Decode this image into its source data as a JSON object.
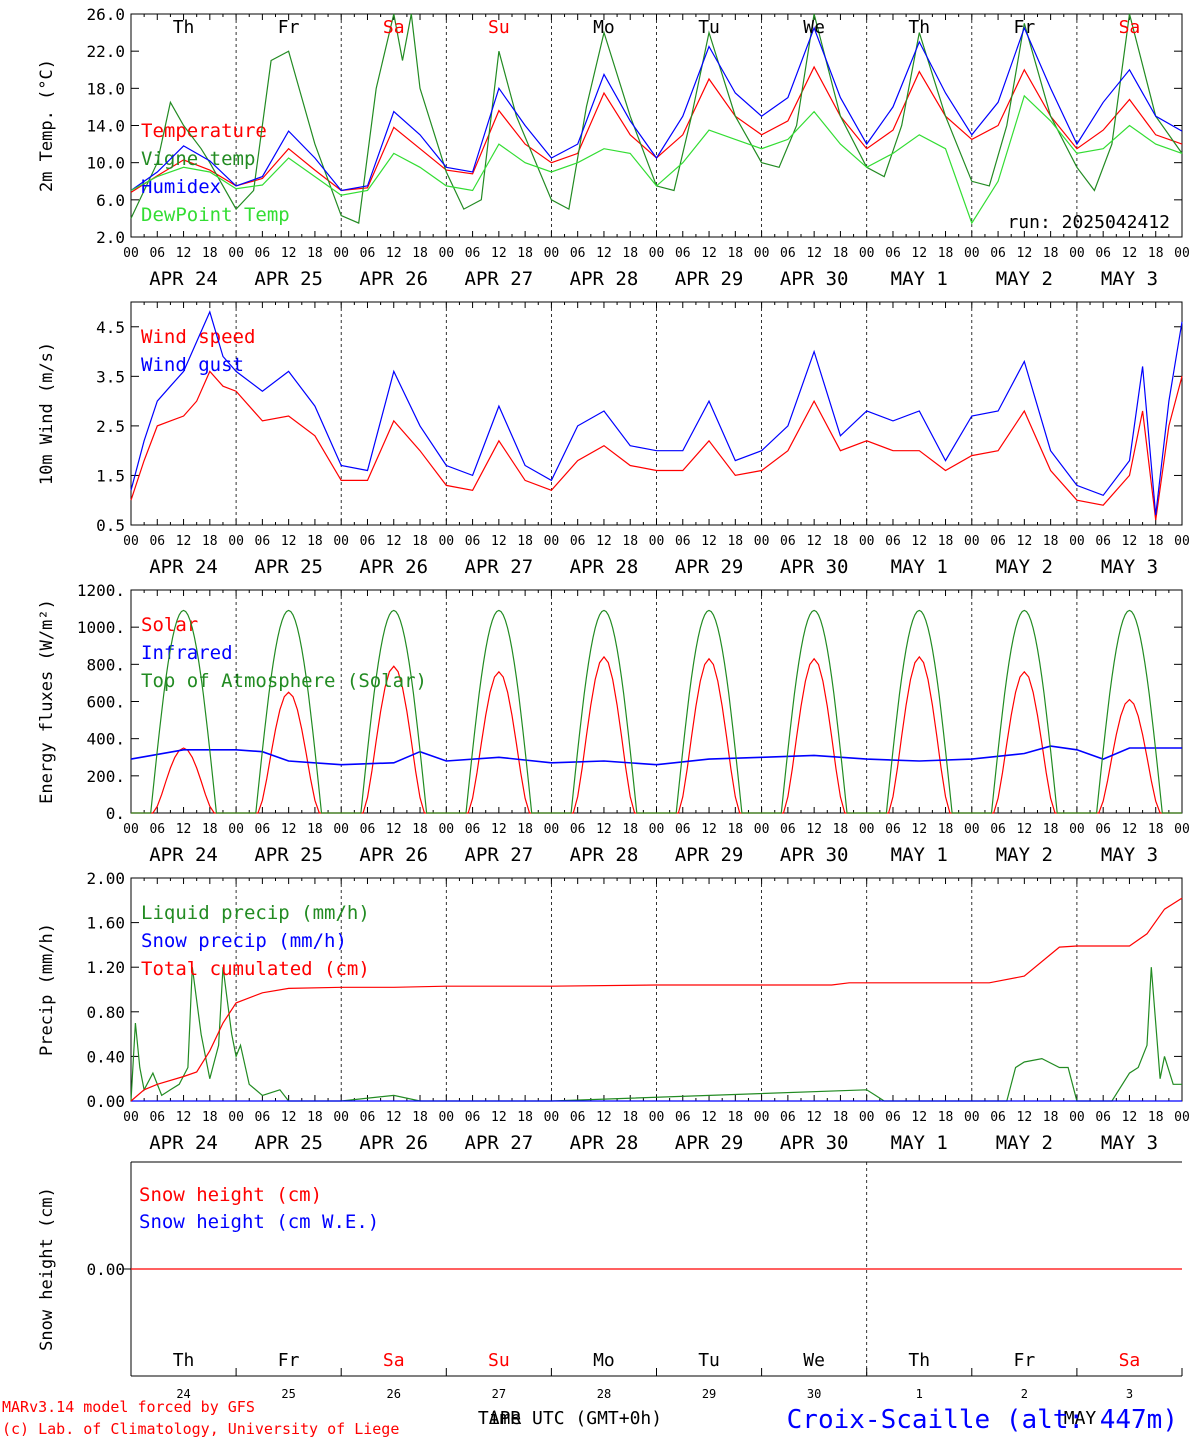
{
  "run_label": "run: 2025042412",
  "footer": {
    "credit_line1": "MARv3.14 model forced by GFS",
    "credit_line2": "(c) Lab. of Climatology, University of Liege",
    "time_axis_label": "Time UTC (GMT+0h)",
    "month_overlay_1": "APR",
    "month_overlay_2": "MAY",
    "station": "Croix-Scaille (alt: 447m)"
  },
  "colors": {
    "red": "#ff0000",
    "green": "#228b22",
    "blue": "#0000ff",
    "lightgreen": "#33dd33"
  },
  "days": [
    {
      "date": "APR 24",
      "dow": "Th",
      "weekend": false,
      "num": "24"
    },
    {
      "date": "APR 25",
      "dow": "Fr",
      "weekend": false,
      "num": "25"
    },
    {
      "date": "APR 26",
      "dow": "Sa",
      "weekend": true,
      "num": "26"
    },
    {
      "date": "APR 27",
      "dow": "Su",
      "weekend": true,
      "num": "27"
    },
    {
      "date": "APR 28",
      "dow": "Mo",
      "weekend": false,
      "num": "28"
    },
    {
      "date": "APR 29",
      "dow": "Tu",
      "weekend": false,
      "num": "29"
    },
    {
      "date": "APR 30",
      "dow": "We",
      "weekend": false,
      "num": "30"
    },
    {
      "date": "MAY  1",
      "dow": "Th",
      "weekend": false,
      "num": "1"
    },
    {
      "date": "MAY  2",
      "dow": "Fr",
      "weekend": false,
      "num": "2"
    },
    {
      "date": "MAY  3",
      "dow": "Sa",
      "weekend": true,
      "num": "3"
    }
  ],
  "hour_ticks": [
    "00",
    "06",
    "12",
    "18"
  ],
  "chart_data": [
    {
      "type": "line",
      "ylabel": "2m Temp. (°C)",
      "ylim": [
        2,
        26
      ],
      "yticks": [
        "2.0",
        "6.0",
        "10.0",
        "14.0",
        "18.0",
        "22.0",
        "26.0"
      ],
      "x_unit": "hours since APR 24 00 UTC",
      "series": [
        {
          "name": "Temperature",
          "color": "red",
          "x": [
            0,
            6,
            12,
            18,
            24,
            30,
            36,
            42,
            48,
            54,
            60,
            66,
            72,
            78,
            84,
            90,
            96,
            102,
            108,
            114,
            120,
            126,
            132,
            138,
            144,
            150,
            156,
            162,
            168,
            174,
            180,
            186,
            192,
            198,
            204,
            210,
            216,
            222,
            228,
            234,
            240
          ],
          "y": [
            6.8,
            8.6,
            10.3,
            9.2,
            7.5,
            8.3,
            11.5,
            9.2,
            7.0,
            7.3,
            13.8,
            11.5,
            9.2,
            8.8,
            15.6,
            12.0,
            10.0,
            11.0,
            17.5,
            13.0,
            10.5,
            13.0,
            19.0,
            15.0,
            13.0,
            14.5,
            20.3,
            15.0,
            11.5,
            13.5,
            19.8,
            15.0,
            12.5,
            14.0,
            20.0,
            15.0,
            11.5,
            13.5,
            16.8,
            13.0,
            12.0
          ]
        },
        {
          "name": "Vigne temp",
          "color": "green",
          "x": [
            0,
            6,
            9,
            12,
            16,
            18,
            24,
            28,
            32,
            36,
            42,
            48,
            52,
            56,
            60,
            62,
            64,
            66,
            72,
            76,
            80,
            84,
            88,
            96,
            100,
            104,
            108,
            114,
            120,
            124,
            128,
            132,
            138,
            144,
            148,
            152,
            156,
            162,
            168,
            172,
            176,
            180,
            186,
            192,
            196,
            200,
            204,
            210,
            216,
            220,
            224,
            228,
            234,
            240
          ],
          "y": [
            4,
            10,
            16.5,
            14,
            11.5,
            10,
            5,
            7,
            21,
            22,
            12,
            4.3,
            3.5,
            18,
            26,
            21,
            26,
            18,
            9,
            5,
            6,
            22,
            15,
            6,
            5,
            16,
            24,
            15,
            7.5,
            7,
            15,
            24,
            15,
            10,
            9.5,
            14,
            26,
            15,
            9.5,
            8.5,
            14,
            24,
            15,
            8,
            7.5,
            14,
            25,
            15,
            9.5,
            7,
            12,
            26,
            15,
            11
          ]
        },
        {
          "name": "Humidex",
          "color": "blue",
          "x": [
            0,
            6,
            12,
            18,
            24,
            30,
            36,
            42,
            48,
            54,
            60,
            66,
            72,
            78,
            84,
            90,
            96,
            102,
            108,
            114,
            120,
            126,
            132,
            138,
            144,
            150,
            156,
            162,
            168,
            174,
            180,
            186,
            192,
            198,
            204,
            210,
            216,
            222,
            228,
            234,
            240
          ],
          "y": [
            7,
            9,
            11.8,
            10.2,
            7.5,
            8.5,
            13.4,
            10.5,
            7,
            7.5,
            15.5,
            13.0,
            9.5,
            9.0,
            18.0,
            14.0,
            10.5,
            12.0,
            19.5,
            14.5,
            10.5,
            15.0,
            22.5,
            17.5,
            15.0,
            17.0,
            24.5,
            17.0,
            12.0,
            16.0,
            23.0,
            17.5,
            13.0,
            16.5,
            24.5,
            18.0,
            12.0,
            16.5,
            20.0,
            15.0,
            13.4
          ]
        },
        {
          "name": "DewPoint Temp",
          "color": "lightgreen",
          "x": [
            0,
            6,
            12,
            18,
            24,
            30,
            36,
            42,
            48,
            54,
            60,
            66,
            72,
            78,
            84,
            90,
            96,
            102,
            108,
            114,
            120,
            126,
            132,
            138,
            144,
            150,
            156,
            162,
            168,
            174,
            180,
            186,
            192,
            198,
            204,
            210,
            216,
            222,
            228,
            234,
            240
          ],
          "y": [
            7,
            8.5,
            9.5,
            9.0,
            7.2,
            7.6,
            10.5,
            8.5,
            6.5,
            7.0,
            11.0,
            9.5,
            7.5,
            7.0,
            12.0,
            10.0,
            9.0,
            10.0,
            11.5,
            11.0,
            7.5,
            10.0,
            13.5,
            12.5,
            11.5,
            12.5,
            15.5,
            12.0,
            9.5,
            11.0,
            13.0,
            11.5,
            3.5,
            8.0,
            17.2,
            14.5,
            11.0,
            11.5,
            14.0,
            12.0,
            11.0
          ]
        }
      ]
    },
    {
      "type": "line",
      "ylabel": "10m Wind (m/s)",
      "ylim": [
        0.5,
        5.0
      ],
      "yticks": [
        "0.5",
        "1.5",
        "2.5",
        "3.5",
        "4.5"
      ],
      "x_unit": "hours since APR 24 00 UTC",
      "series": [
        {
          "name": "Wind speed",
          "color": "red",
          "x": [
            0,
            3,
            6,
            9,
            12,
            15,
            18,
            21,
            24,
            30,
            36,
            42,
            48,
            54,
            60,
            66,
            72,
            78,
            84,
            90,
            96,
            102,
            108,
            114,
            120,
            126,
            132,
            138,
            144,
            150,
            156,
            162,
            168,
            174,
            180,
            186,
            192,
            198,
            204,
            210,
            216,
            222,
            228,
            231,
            234,
            237,
            240
          ],
          "y": [
            1.0,
            1.8,
            2.5,
            2.6,
            2.7,
            3.0,
            3.6,
            3.3,
            3.2,
            2.6,
            2.7,
            2.3,
            1.4,
            1.4,
            2.6,
            2.0,
            1.3,
            1.2,
            2.2,
            1.4,
            1.2,
            1.8,
            2.1,
            1.7,
            1.6,
            1.6,
            2.2,
            1.5,
            1.6,
            2.0,
            3.0,
            2.0,
            2.2,
            2.0,
            2.0,
            1.6,
            1.9,
            2.0,
            2.8,
            1.6,
            1.0,
            0.9,
            1.5,
            2.8,
            0.6,
            2.5,
            3.5
          ]
        },
        {
          "name": "Wind gust",
          "color": "blue",
          "x": [
            0,
            3,
            6,
            9,
            12,
            15,
            18,
            21,
            24,
            30,
            36,
            42,
            48,
            54,
            60,
            66,
            72,
            78,
            84,
            90,
            96,
            102,
            108,
            114,
            120,
            126,
            132,
            138,
            144,
            150,
            156,
            162,
            168,
            174,
            180,
            186,
            192,
            198,
            204,
            210,
            216,
            222,
            228,
            231,
            234,
            237,
            240
          ],
          "y": [
            1.2,
            2.2,
            3.0,
            3.3,
            3.6,
            4.2,
            4.8,
            3.9,
            3.6,
            3.2,
            3.6,
            2.9,
            1.7,
            1.6,
            3.6,
            2.5,
            1.7,
            1.5,
            2.9,
            1.7,
            1.4,
            2.5,
            2.8,
            2.1,
            2.0,
            2.0,
            3.0,
            1.8,
            2.0,
            2.5,
            4.0,
            2.3,
            2.8,
            2.6,
            2.8,
            1.8,
            2.7,
            2.8,
            3.8,
            2.0,
            1.3,
            1.1,
            1.8,
            3.7,
            0.7,
            3.0,
            4.6
          ]
        }
      ]
    },
    {
      "type": "line",
      "ylabel": "Energy fluxes (W/m²)",
      "ylim": [
        0,
        1200
      ],
      "yticks": [
        "0.",
        "200.",
        "400.",
        "600.",
        "800.",
        "1000.",
        "1200."
      ],
      "x_unit": "hours since APR 24 00 UTC",
      "series": [
        {
          "name": "Solar",
          "color": "red",
          "peaks": [
            350,
            650,
            790,
            760,
            840,
            830,
            830,
            840,
            760,
            610
          ],
          "daylight_hours": [
            5,
            19
          ]
        },
        {
          "name": "Infrared",
          "color": "blue",
          "x": [
            0,
            12,
            24,
            30,
            36,
            48,
            60,
            66,
            72,
            84,
            96,
            108,
            120,
            132,
            144,
            156,
            168,
            180,
            192,
            204,
            210,
            216,
            222,
            228,
            234,
            240
          ],
          "y": [
            290,
            340,
            340,
            330,
            280,
            260,
            270,
            330,
            280,
            300,
            270,
            280,
            260,
            290,
            300,
            310,
            290,
            280,
            290,
            320,
            360,
            340,
            290,
            350,
            350,
            350
          ]
        },
        {
          "name": "Top of Atmosphere (Solar)",
          "color": "green",
          "peak": 1090,
          "daylight_hours": [
            4.5,
            19.5
          ]
        }
      ]
    },
    {
      "type": "line",
      "ylabel": "Precip (mm/h)",
      "ylim": [
        0,
        2.0
      ],
      "yticks": [
        "0.00",
        "0.40",
        "0.80",
        "1.20",
        "1.60",
        "2.00"
      ],
      "x_unit": "hours since APR 24 00 UTC",
      "series": [
        {
          "name": "Liquid precip (mm/h)",
          "color": "green",
          "x": [
            0,
            1,
            2,
            3,
            5,
            7,
            9,
            11,
            13,
            14,
            16,
            18,
            20,
            21,
            22,
            23,
            24,
            25,
            27,
            30,
            34,
            36,
            40,
            48,
            60,
            66,
            70,
            96,
            168,
            170,
            172,
            176,
            180,
            200,
            202,
            204,
            208,
            212,
            214,
            216,
            220,
            224,
            228,
            230,
            232,
            233,
            235,
            236,
            238,
            240
          ],
          "y": [
            0,
            0.7,
            0.3,
            0.1,
            0.25,
            0.05,
            0.1,
            0.15,
            0.3,
            1.2,
            0.6,
            0.2,
            0.5,
            1.2,
            0.9,
            0.6,
            0.4,
            0.5,
            0.15,
            0.05,
            0.1,
            0,
            0,
            0,
            0.05,
            0,
            0,
            0,
            0.1,
            0.05,
            0,
            0,
            0,
            0,
            0.3,
            0.35,
            0.38,
            0.3,
            0.3,
            0,
            0,
            0,
            0.25,
            0.3,
            0.5,
            1.2,
            0.2,
            0.4,
            0.15,
            0.15
          ]
        },
        {
          "name": "Snow precip (mm/h)",
          "color": "blue",
          "x": [
            0,
            240
          ],
          "y": [
            0,
            0
          ]
        },
        {
          "name": "Total cumulated (cm)",
          "color": "red",
          "x": [
            0,
            3,
            6,
            12,
            15,
            18,
            21,
            24,
            30,
            36,
            48,
            60,
            72,
            96,
            120,
            144,
            160,
            164,
            180,
            196,
            204,
            212,
            216,
            228,
            232,
            236,
            240
          ],
          "y": [
            0,
            0.1,
            0.15,
            0.22,
            0.26,
            0.45,
            0.7,
            0.88,
            0.97,
            1.01,
            1.02,
            1.02,
            1.03,
            1.03,
            1.04,
            1.04,
            1.04,
            1.06,
            1.06,
            1.06,
            1.12,
            1.38,
            1.39,
            1.39,
            1.5,
            1.72,
            1.82
          ]
        }
      ]
    },
    {
      "type": "line",
      "ylabel": "Snow height (cm)",
      "ylim": [
        -1,
        1
      ],
      "yticks": [
        "0.00"
      ],
      "x_unit": "hours since APR 24 00 UTC",
      "series": [
        {
          "name": "Snow height (cm)",
          "color": "red",
          "x": [
            0,
            240
          ],
          "y": [
            0,
            0
          ]
        },
        {
          "name": "Snow height (cm W.E.)",
          "color": "blue",
          "x": [
            0,
            240
          ],
          "y": [
            0,
            0
          ]
        }
      ]
    }
  ]
}
